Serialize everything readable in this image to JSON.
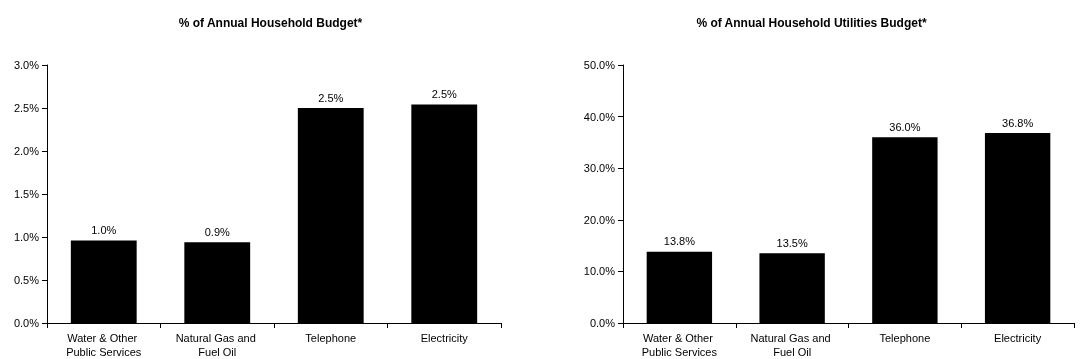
{
  "chart_data": [
    {
      "type": "bar",
      "title": "% of Annual Household Budget*",
      "categories": [
        "Water & Other Public Services",
        "Natural Gas and Fuel Oil",
        "Telephone",
        "Electricity"
      ],
      "values": [
        0.96,
        0.94,
        2.5,
        2.54
      ],
      "color": "#000000",
      "value_labels": [
        "1.0%",
        "0.9%",
        "2.5%",
        "2.5%"
      ],
      "ylim": [
        0,
        3
      ],
      "yticks": [
        {
          "value": 0,
          "label": "0.0%"
        },
        {
          "value": 0.5,
          "label": "0.5%"
        },
        {
          "value": 1,
          "label": "1.0%"
        },
        {
          "value": 1.5,
          "label": "1.5%"
        },
        {
          "value": 2,
          "label": "2.0%"
        },
        {
          "value": 2.5,
          "label": "2.5%"
        },
        {
          "value": 3,
          "label": "3.0%"
        }
      ],
      "grid": false
    },
    {
      "type": "bar",
      "title": "% of Annual Household Utilities Budget*",
      "categories": [
        "Water & Other Public Services",
        "Natural Gas and Fuel Oil",
        "Telephone",
        "Electricity"
      ],
      "values": [
        13.8,
        13.5,
        36.0,
        36.8
      ],
      "color": "#000000",
      "value_labels": [
        "13.8%",
        "13.5%",
        "36.0%",
        "36.8%"
      ],
      "ylim": [
        0,
        50
      ],
      "yticks": [
        {
          "value": 0,
          "label": "0.0%"
        },
        {
          "value": 10,
          "label": "10.0%"
        },
        {
          "value": 20,
          "label": "20.0%"
        },
        {
          "value": 30,
          "label": "30.0%"
        },
        {
          "value": 40,
          "label": "40.0%"
        },
        {
          "value": 50,
          "label": "50.0%"
        }
      ],
      "grid": false
    }
  ]
}
